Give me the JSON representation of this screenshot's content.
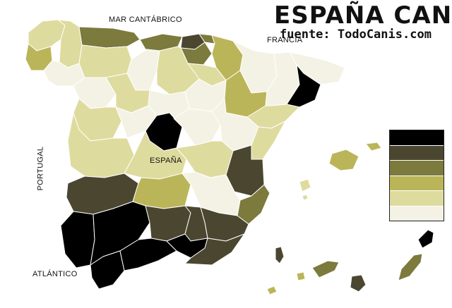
{
  "header": {
    "title": "ESPAÑA CANI",
    "source": "fuente: TodoCanis.com"
  },
  "labels": {
    "north_sea": "MAR CANTÁBRICO",
    "france": "FRANCIA",
    "portugal": "PORTUGAL",
    "spain": "ESPAÑA",
    "atlantic": "ATLÁNTICO"
  },
  "legend": {
    "colors": [
      "#000000",
      "#4a4630",
      "#7c7a3c",
      "#bab558",
      "#dedb9e",
      "#f4f2e4"
    ]
  }
}
